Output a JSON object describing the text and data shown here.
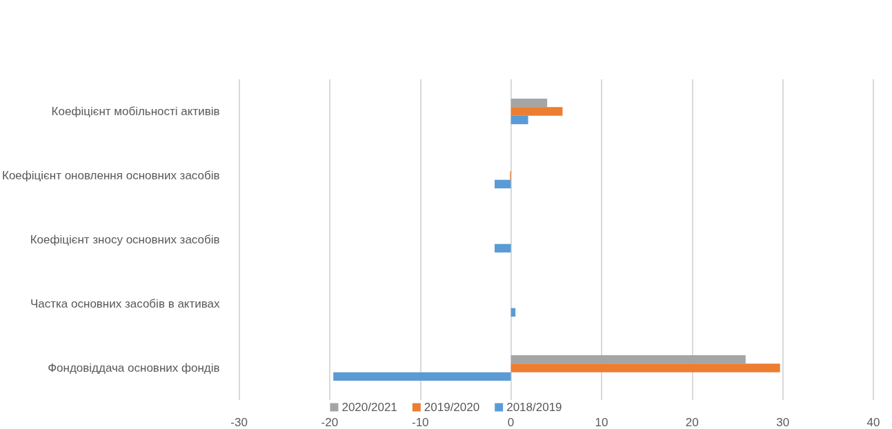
{
  "chart_data": {
    "type": "bar",
    "orientation": "horizontal",
    "categories": [
      "Коефіцієнт мобільності активів",
      "Коефіцієнт оновлення основних засобів",
      "Коефіцієнт зносу основних засобів",
      "Частка основних засобів в активах",
      "Фондовіддача основних фондів"
    ],
    "series": [
      {
        "name": "2020/2021",
        "color": "#a5a5a5",
        "values": [
          4.0,
          0,
          0,
          0,
          25.9
        ]
      },
      {
        "name": "2019/2020",
        "color": "#ed7d31",
        "values": [
          5.7,
          -0.1,
          0,
          0,
          29.7
        ]
      },
      {
        "name": "2018/2019",
        "color": "#5b9bd5",
        "values": [
          1.9,
          -1.8,
          -1.8,
          0.5,
          -19.6
        ]
      }
    ],
    "xlim": [
      -30,
      40
    ],
    "xticks": [
      -30,
      -20,
      -10,
      0,
      10,
      20,
      30,
      40
    ],
    "grid": "x",
    "legend": "bottom"
  }
}
